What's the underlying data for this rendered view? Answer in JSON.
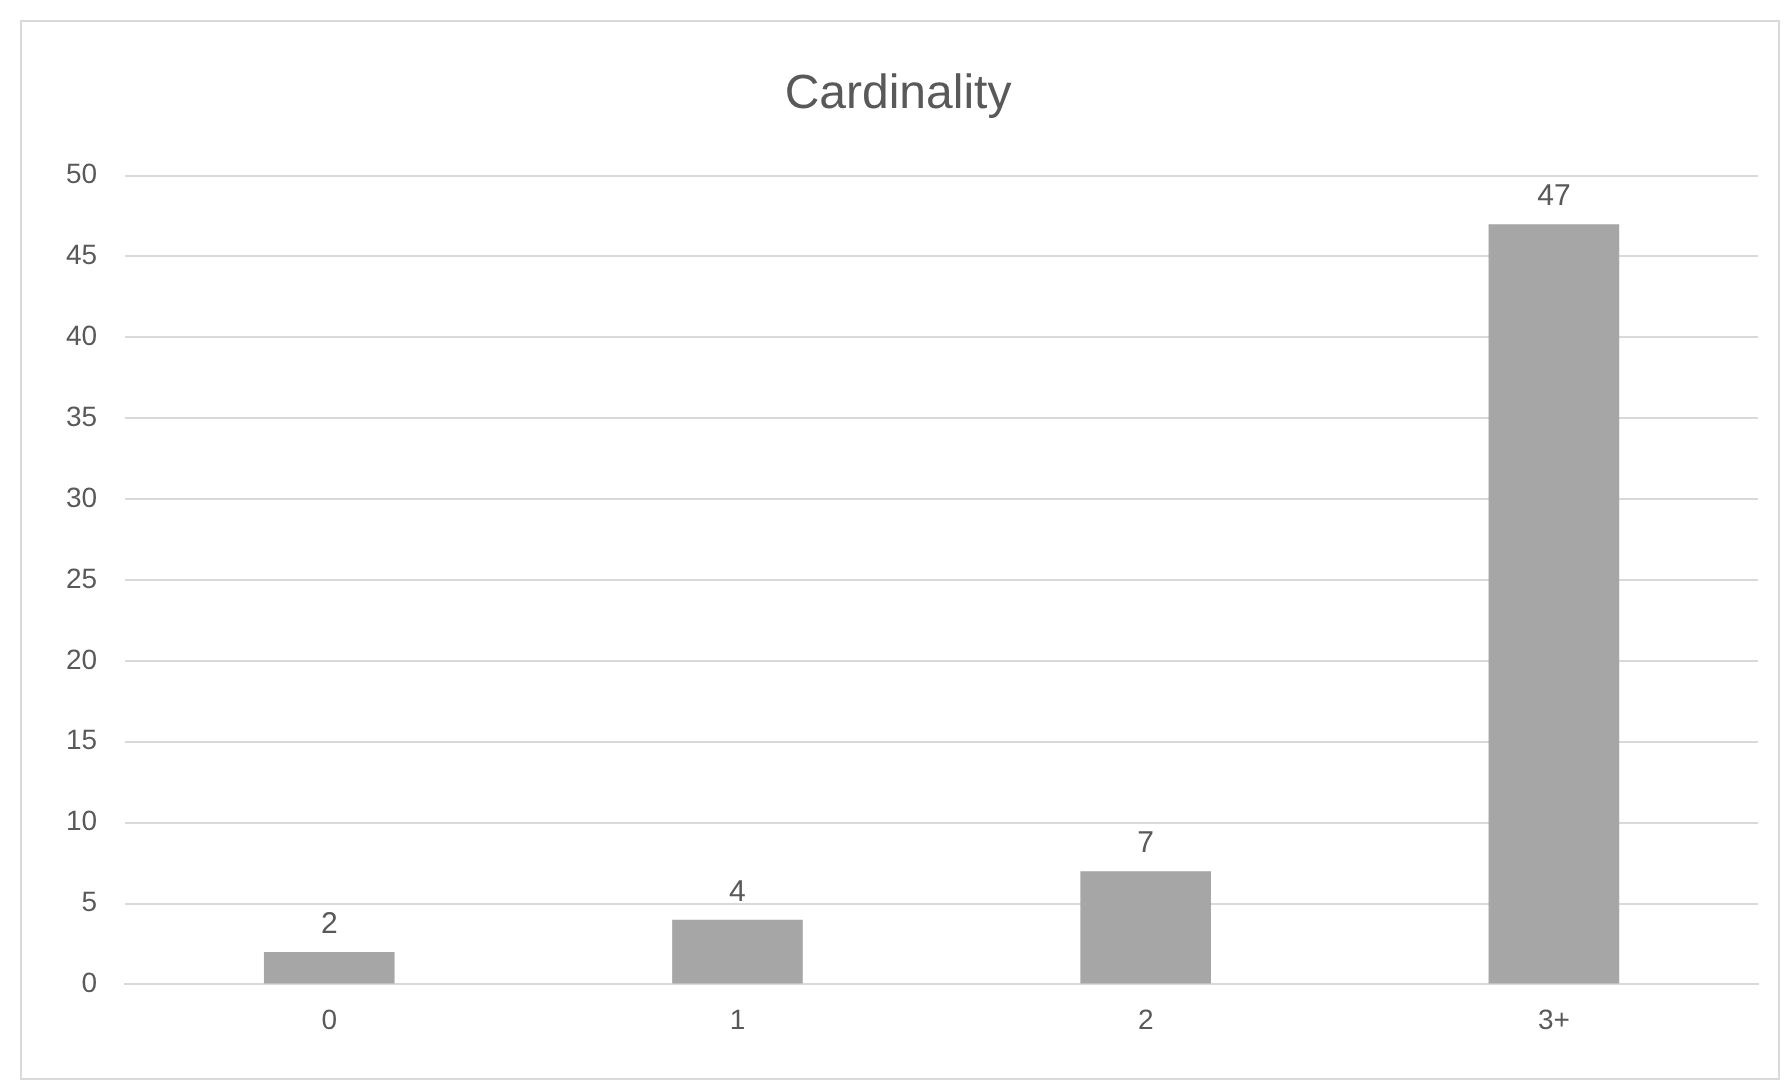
{
  "chart_data": {
    "type": "bar",
    "title": "Cardinality",
    "categories": [
      "0",
      "1",
      "2",
      "3+"
    ],
    "values": [
      2,
      4,
      7,
      47
    ],
    "color": "#a6a6a6",
    "ylim": [
      0,
      50
    ],
    "yticks": [
      0,
      5,
      10,
      15,
      20,
      25,
      30,
      35,
      40,
      45,
      50
    ],
    "grid": "y",
    "data_labels": true
  }
}
